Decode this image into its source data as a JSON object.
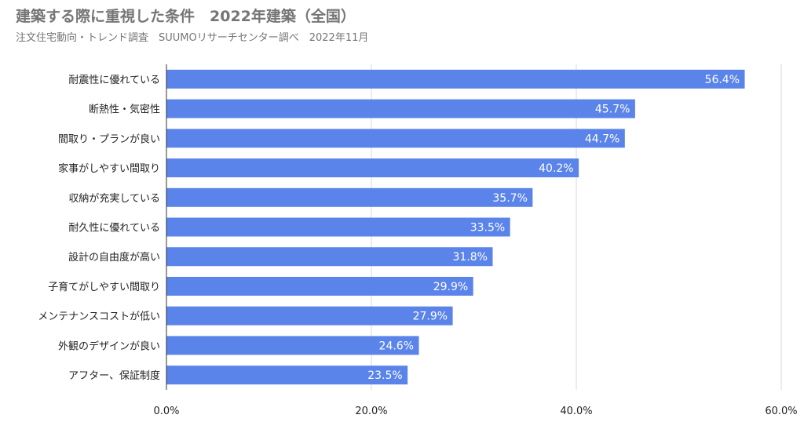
{
  "chart_data": {
    "type": "bar",
    "orientation": "horizontal",
    "title": "建築する際に重視した条件　2022年建築（全国）",
    "subtitle": "注文住宅動向・トレンド調査　SUUMOリサーチセンター調べ　2022年11月",
    "categories": [
      "耐震性に優れている",
      "断熱性・気密性",
      "間取り・プランが良い",
      "家事がしやすい間取り",
      "収納が充実している",
      "耐久性に優れている",
      "設計の自由度が高い",
      "子育てがしやすい間取り",
      "メンテナンスコストが低い",
      "外観のデザインが良い",
      "アフター、保証制度"
    ],
    "values": [
      56.4,
      45.7,
      44.7,
      40.2,
      35.7,
      33.5,
      31.8,
      29.9,
      27.9,
      24.6,
      23.5
    ],
    "value_labels": [
      "56.4%",
      "45.7%",
      "44.7%",
      "40.2%",
      "35.7%",
      "33.5%",
      "31.8%",
      "29.9%",
      "27.9%",
      "24.6%",
      "23.5%"
    ],
    "xlim": [
      0,
      60
    ],
    "x_ticks": [
      0,
      20,
      40,
      60
    ],
    "x_tick_labels": [
      "0.0%",
      "20.0%",
      "40.0%",
      "60.0%"
    ],
    "grid": true,
    "legend": "none",
    "bar_color": "#5b84ea"
  }
}
